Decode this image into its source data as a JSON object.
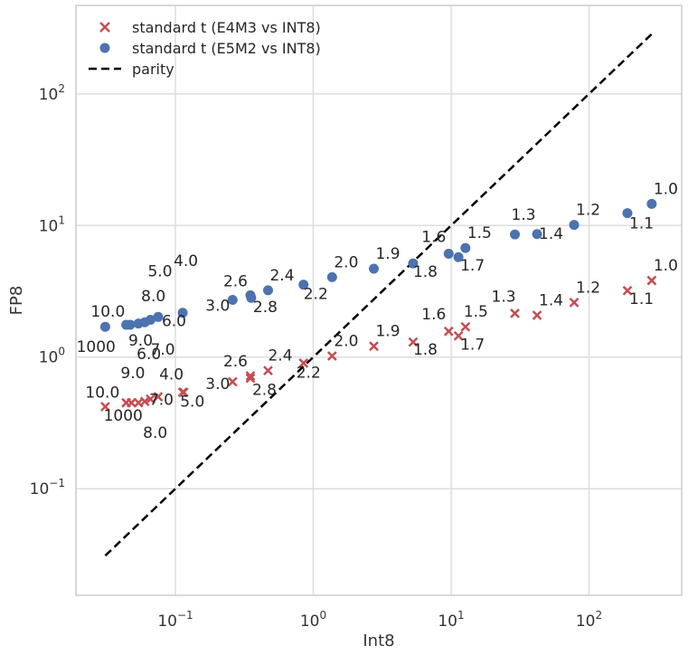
{
  "chart_data": {
    "type": "scatter",
    "title": "",
    "xlabel": "Int8",
    "ylabel": "FP8",
    "xscale": "log",
    "yscale": "log",
    "xlim": [
      0.019,
      470
    ],
    "ylim": [
      0.0155,
      470
    ],
    "xticks": [
      {
        "value": 0.1,
        "base": "10",
        "exp": "−1"
      },
      {
        "value": 1,
        "base": "10",
        "exp": "0"
      },
      {
        "value": 10,
        "base": "10",
        "exp": "1"
      },
      {
        "value": 100,
        "base": "10",
        "exp": "2"
      }
    ],
    "yticks": [
      {
        "value": 0.1,
        "base": "10",
        "exp": "−1"
      },
      {
        "value": 1,
        "base": "10",
        "exp": "0"
      },
      {
        "value": 10,
        "base": "10",
        "exp": "1"
      },
      {
        "value": 100,
        "base": "10",
        "exp": "2"
      }
    ],
    "legend_position": "top-left",
    "series": [
      {
        "name": "standard t (E4M3 vs INT8)",
        "marker": "x",
        "color": "#c44e52",
        "points": [
          {
            "x": 0.031,
            "y": 0.42,
            "label": "10.0",
            "dx": -22,
            "dy": -10
          },
          {
            "x": 0.044,
            "y": 0.45,
            "label": "1000",
            "dx": -25,
            "dy": 20
          },
          {
            "x": 0.048,
            "y": 0.45,
            "label": "9.0",
            "dx": -12,
            "dy": -27
          },
          {
            "x": 0.054,
            "y": 0.45,
            "label": "6.0",
            "dx": -2,
            "dy": -48
          },
          {
            "x": 0.06,
            "y": 0.46,
            "label": "8.0",
            "dx": -2,
            "dy": 40
          },
          {
            "x": 0.066,
            "y": 0.48,
            "label": "7.0",
            "dx": 0,
            "dy": -49
          },
          {
            "x": 0.075,
            "y": 0.5,
            "label": "7.0",
            "dx": -10,
            "dy": 9
          },
          {
            "x": 0.113,
            "y": 0.54,
            "label": "4.0",
            "dx": -26,
            "dy": -14
          },
          {
            "x": 0.115,
            "y": 0.54,
            "label": "5.0",
            "dx": -4,
            "dy": 16
          },
          {
            "x": 0.26,
            "y": 0.65,
            "label": "3.0",
            "dx": -30,
            "dy": 8
          },
          {
            "x": 0.35,
            "y": 0.69,
            "label": "2.6",
            "dx": -30,
            "dy": -13
          },
          {
            "x": 0.35,
            "y": 0.72,
            "label": "2.8",
            "dx": 2,
            "dy": 21
          },
          {
            "x": 0.47,
            "y": 0.79,
            "label": "2.4",
            "dx": 0,
            "dy": -11
          },
          {
            "x": 0.85,
            "y": 0.9,
            "label": "2.2",
            "dx": -8,
            "dy": 16
          },
          {
            "x": 1.37,
            "y": 1.02,
            "label": "2.0",
            "dx": 2,
            "dy": -11
          },
          {
            "x": 2.75,
            "y": 1.21,
            "label": "1.9",
            "dx": 2,
            "dy": -11
          },
          {
            "x": 5.3,
            "y": 1.3,
            "label": "1.8",
            "dx": 0,
            "dy": 14
          },
          {
            "x": 9.6,
            "y": 1.57,
            "label": "1.6",
            "dx": -30,
            "dy": -13
          },
          {
            "x": 11.3,
            "y": 1.45,
            "label": "1.7",
            "dx": 2,
            "dy": 15
          },
          {
            "x": 12.7,
            "y": 1.7,
            "label": "1.5",
            "dx": -2,
            "dy": -11
          },
          {
            "x": 29,
            "y": 2.15,
            "label": "1.3",
            "dx": -26,
            "dy": -13
          },
          {
            "x": 42,
            "y": 2.08,
            "label": "1.4",
            "dx": 2,
            "dy": -11
          },
          {
            "x": 78,
            "y": 2.6,
            "label": "1.2",
            "dx": 2,
            "dy": -11
          },
          {
            "x": 190,
            "y": 3.2,
            "label": "1.1",
            "dx": 2,
            "dy": 15
          },
          {
            "x": 285,
            "y": 3.82,
            "label": "1.0",
            "dx": 2,
            "dy": -11
          }
        ]
      },
      {
        "name": "standard t (E5M2 vs INT8)",
        "marker": "o",
        "color": "#4c72b0",
        "points": [
          {
            "x": 0.031,
            "y": 1.7,
            "label": "10.0",
            "dx": -16,
            "dy": -11
          },
          {
            "x": 0.044,
            "y": 1.76,
            "label": "1000",
            "dx": -55,
            "dy": 30
          },
          {
            "x": 0.047,
            "y": 1.76,
            "label": "9.0",
            "dx": -2,
            "dy": 23
          },
          {
            "x": 0.054,
            "y": 1.8,
            "label": "",
            "dx": 0,
            "dy": 0
          },
          {
            "x": 0.06,
            "y": 1.84,
            "label": "8.0",
            "dx": -4,
            "dy": -23
          },
          {
            "x": 0.066,
            "y": 1.92,
            "label": "5.0",
            "dx": -3,
            "dy": -48
          },
          {
            "x": 0.075,
            "y": 2.02,
            "label": "6.0",
            "dx": 4,
            "dy": 10
          },
          {
            "x": 0.113,
            "y": 2.17,
            "label": "4.0",
            "dx": -10,
            "dy": -52
          },
          {
            "x": 0.26,
            "y": 2.72,
            "label": "3.0",
            "dx": -30,
            "dy": 12
          },
          {
            "x": 0.35,
            "y": 2.95,
            "label": "2.6",
            "dx": -30,
            "dy": -10
          },
          {
            "x": 0.355,
            "y": 2.82,
            "label": "2.8",
            "dx": 2,
            "dy": 16
          },
          {
            "x": 0.47,
            "y": 3.22,
            "label": "2.4",
            "dx": 2,
            "dy": -11
          },
          {
            "x": 0.85,
            "y": 3.55,
            "label": "2.2",
            "dx": 0,
            "dy": 16
          },
          {
            "x": 1.37,
            "y": 4.05,
            "label": "2.0",
            "dx": 2,
            "dy": -11
          },
          {
            "x": 2.75,
            "y": 4.7,
            "label": "1.9",
            "dx": 2,
            "dy": -11
          },
          {
            "x": 5.3,
            "y": 5.15,
            "label": "1.8",
            "dx": 0,
            "dy": 15
          },
          {
            "x": 9.6,
            "y": 6.1,
            "label": "1.6",
            "dx": -30,
            "dy": -13
          },
          {
            "x": 11.3,
            "y": 5.75,
            "label": "1.7",
            "dx": 2,
            "dy": 15
          },
          {
            "x": 12.7,
            "y": 6.75,
            "label": "1.5",
            "dx": 2,
            "dy": -11
          },
          {
            "x": 29,
            "y": 8.55,
            "label": "1.3",
            "dx": -4,
            "dy": -16
          },
          {
            "x": 42,
            "y": 8.6,
            "label": "1.4",
            "dx": 2,
            "dy": 5
          },
          {
            "x": 78,
            "y": 10.1,
            "label": "1.2",
            "dx": 2,
            "dy": -11
          },
          {
            "x": 190,
            "y": 12.4,
            "label": "1.1",
            "dx": 2,
            "dy": 17
          },
          {
            "x": 285,
            "y": 14.6,
            "label": "1.0",
            "dx": 2,
            "dy": -11
          }
        ]
      },
      {
        "name": "parity",
        "marker": "line",
        "color": "#000000",
        "dash": "dashed",
        "x": [
          0.031,
          285
        ],
        "y": [
          0.031,
          285
        ]
      }
    ]
  }
}
